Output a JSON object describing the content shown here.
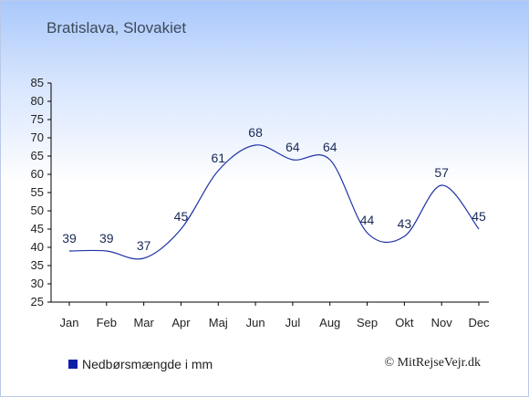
{
  "header": {
    "title": "Bratislava, Slovakiet"
  },
  "legend": {
    "label": "Nedbørsmængde i mm",
    "color": "#0b1ea8"
  },
  "footer": {
    "copyright": "© MitRejseVejr.dk"
  },
  "colors": {
    "line": "#1f33a6",
    "label": "#1a2a58",
    "axis": "#000000"
  },
  "chart_data": {
    "type": "line",
    "categories": [
      "Jan",
      "Feb",
      "Mar",
      "Apr",
      "Maj",
      "Jun",
      "Jul",
      "Aug",
      "Sep",
      "Okt",
      "Nov",
      "Dec"
    ],
    "series": [
      {
        "name": "Nedbørsmængde i mm",
        "values": [
          39,
          39,
          37,
          45,
          61,
          68,
          64,
          64,
          44,
          43,
          57,
          45
        ]
      }
    ],
    "ylim": [
      25,
      85
    ],
    "yticks": [
      25,
      30,
      35,
      40,
      45,
      50,
      55,
      60,
      65,
      70,
      75,
      80,
      85
    ],
    "grid": false,
    "legend_position": "bottom-left"
  }
}
